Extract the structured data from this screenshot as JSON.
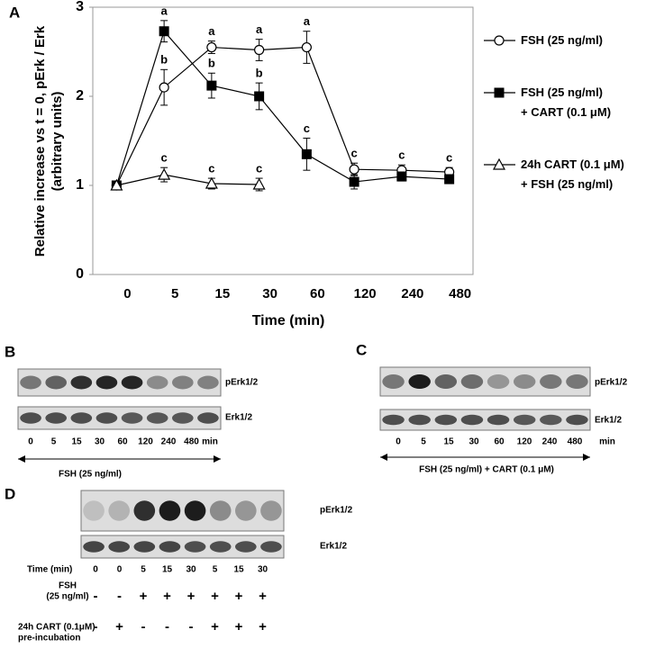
{
  "chart_data": {
    "type": "line",
    "panel": "A",
    "ylabel": [
      "Relative increase vs t = 0, pErk / Erk",
      "(arbitrary units)"
    ],
    "xlabel": "Time (min)",
    "categories": [
      "0",
      "5",
      "15",
      "30",
      "60",
      "120",
      "240",
      "480"
    ],
    "ylim": [
      0,
      3
    ],
    "yticks": [
      0,
      1,
      2,
      3
    ],
    "series": [
      {
        "name": "FSH (25 ng/ml)",
        "color": "#000",
        "marker": "circle",
        "values": [
          1,
          2.1,
          2.55,
          2.52,
          2.55,
          1.18,
          1.17,
          1.15
        ],
        "errors": [
          0,
          0.2,
          0.07,
          0.12,
          0.18,
          0.07,
          0.06,
          0.05
        ],
        "letters": [
          null,
          "b",
          "a",
          "a",
          "a",
          "c",
          "c",
          "c"
        ]
      },
      {
        "name": "FSH (25 ng/ml)\n+ CART (0.1 μM)",
        "color": "#000",
        "marker": "square",
        "values": [
          1,
          2.73,
          2.12,
          2.0,
          1.35,
          1.04,
          1.1,
          1.07
        ],
        "errors": [
          0,
          0.12,
          0.14,
          0.15,
          0.18,
          0.08,
          0.05,
          0.05
        ],
        "letters": [
          null,
          "a",
          "b",
          "b",
          "c",
          null,
          null,
          null
        ]
      },
      {
        "name": "24h CART (0.1 μM)\n+ FSH (25 ng/ml)",
        "color": "#000",
        "marker": "triangle",
        "values": [
          1,
          1.12,
          1.02,
          1.01,
          null,
          null,
          null,
          null
        ],
        "errors": [
          0,
          0.08,
          0.06,
          0.07,
          null,
          null,
          null,
          null
        ],
        "letters": [
          null,
          "c",
          "c",
          "c",
          null,
          null,
          null,
          null
        ]
      }
    ]
  },
  "panels": {
    "B": {
      "panel": "B",
      "bands": [
        "pErk1/2",
        "Erk1/2"
      ],
      "lanes": [
        "0",
        "5",
        "15",
        "30",
        "60",
        "120",
        "240",
        "480",
        "min"
      ],
      "caption": "FSH (25 ng/ml)"
    },
    "C": {
      "panel": "C",
      "bands": [
        "pErk1/2",
        "Erk1/2"
      ],
      "lanes": [
        "0",
        "5",
        "15",
        "30",
        "60",
        "120",
        "240",
        "480",
        "min"
      ],
      "caption": "FSH (25 ng/ml) + CART (0.1 μM)"
    },
    "D": {
      "panel": "D",
      "bands": [
        "pErk1/2",
        "Erk1/2"
      ],
      "rows": [
        {
          "label": [
            "Time (min)"
          ],
          "cells": [
            "0",
            "0",
            "5",
            "15",
            "30",
            "5",
            "15",
            "30"
          ]
        },
        {
          "label": [
            "FSH",
            "(25 ng/ml)"
          ],
          "cells": [
            "-",
            "-",
            "+",
            "+",
            "+",
            "+",
            "+",
            "+"
          ]
        },
        {
          "label": [
            "24h CART (0.1μM)",
            "pre-incubation"
          ],
          "cells": [
            "-",
            "+",
            "-",
            "-",
            "-",
            "+",
            "+",
            "+"
          ]
        }
      ]
    }
  }
}
